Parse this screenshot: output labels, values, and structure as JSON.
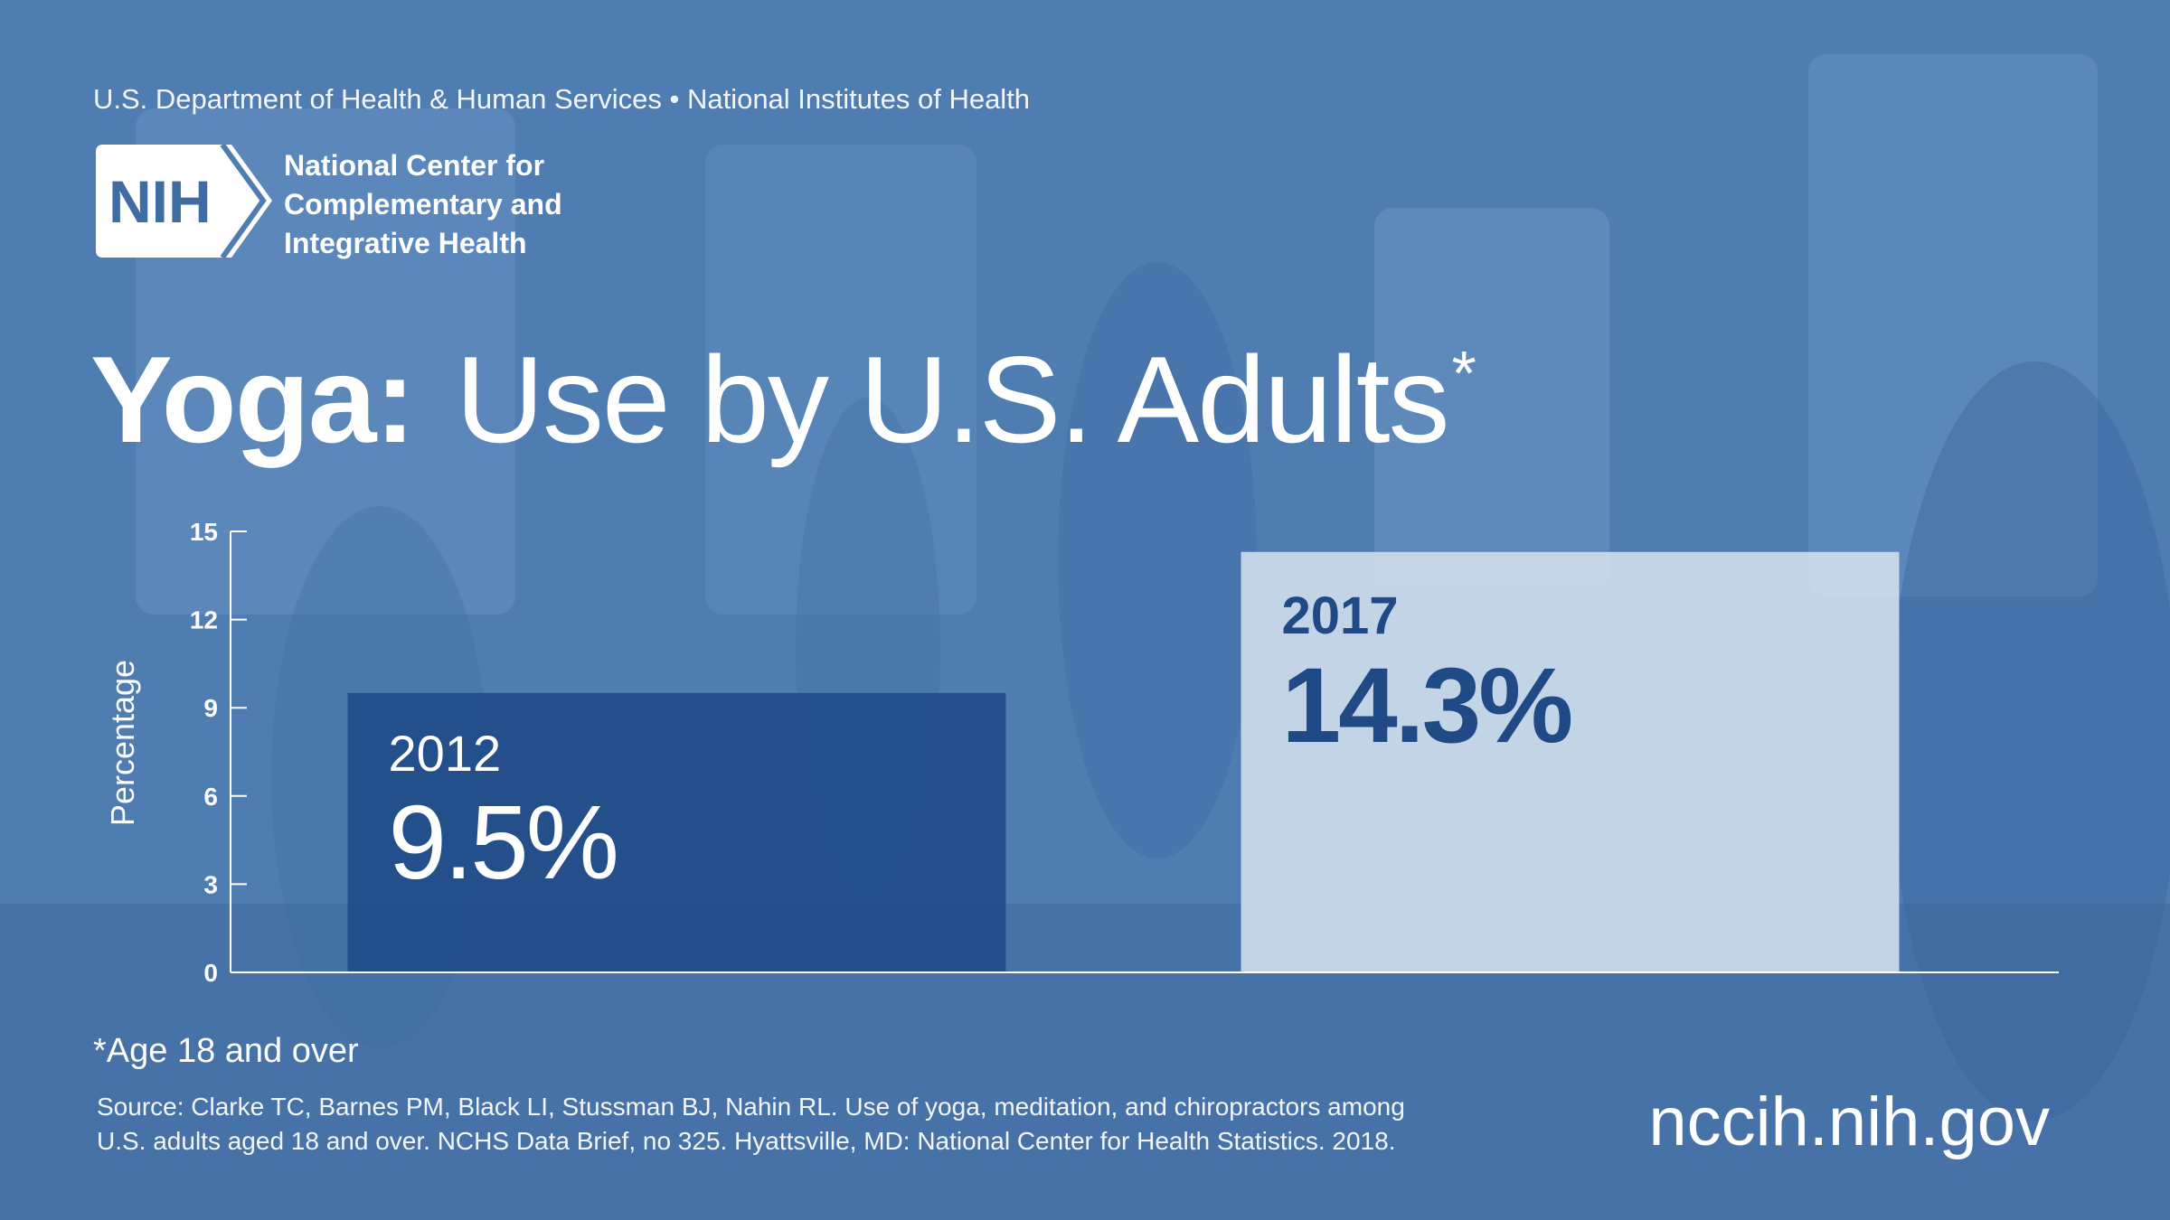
{
  "header": {
    "agency_line": "U.S. Department of Health & Human Services • National Institutes of Health",
    "logo_text": "NIH",
    "center_name_lines": [
      "National Center for",
      "Complementary and",
      "Integrative Health"
    ]
  },
  "title": {
    "bold": "Yoga:",
    "light": "Use by U.S. Adults",
    "marker": "*"
  },
  "chart_data": {
    "type": "bar",
    "categories": [
      "2012",
      "2017"
    ],
    "values": [
      9.5,
      14.3
    ],
    "value_labels": [
      "9.5%",
      "14.3%"
    ],
    "ylabel": "Percentage",
    "ylim": [
      0,
      15
    ],
    "yticks": [
      0,
      3,
      6,
      9,
      12,
      15
    ],
    "grid": false,
    "colors": [
      "#1f4a86",
      "#d5e0ee"
    ],
    "label_colors": [
      "#ffffff",
      "#1f4a86"
    ]
  },
  "footer": {
    "footnote": "*Age 18 and over",
    "source_lines": [
      "Source: Clarke TC, Barnes PM, Black LI, Stussman BJ, Nahin RL. Use of yoga, meditation, and chiropractors among",
      "U.S. adults aged 18 and over. NCHS Data Brief, no 325. Hyattsville, MD: National Center for Health Statistics. 2018."
    ],
    "website": "nccih.nih.gov"
  }
}
